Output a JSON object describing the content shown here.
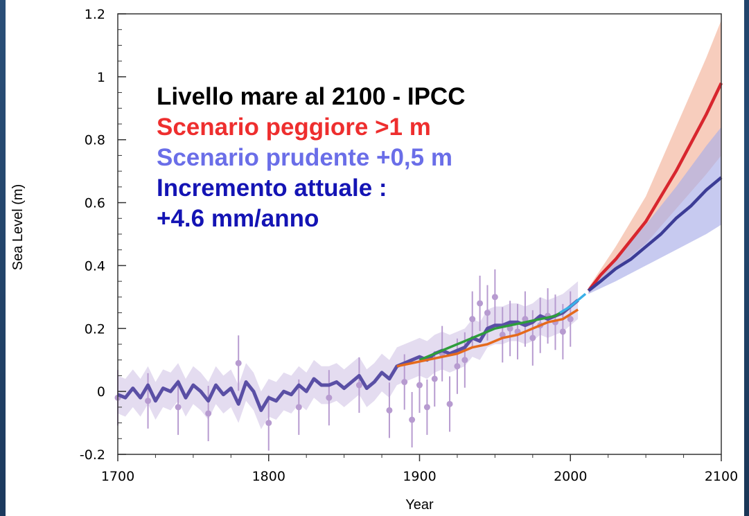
{
  "chart_data": {
    "type": "line",
    "xlabel": "Year",
    "ylabel": "Sea Level (m)",
    "xlim": [
      1700,
      2100
    ],
    "ylim": [
      -0.2,
      1.2
    ],
    "x_ticks": [
      "1700",
      "1800",
      "1900",
      "2000",
      "2100"
    ],
    "y_ticks": [
      "-0.2",
      "0",
      "0.2",
      "0.4",
      "0.6",
      "0.8",
      "1",
      "1.2"
    ],
    "annotations": [
      {
        "text": "Livello mare al 2100 - IPCC",
        "color": "#000000"
      },
      {
        "text": "Scenario peggiore >1 m",
        "color": "#ee2e2e"
      },
      {
        "text": "Scenario prudente +0,5 m",
        "color": "#6a6ee8"
      },
      {
        "text": "Incremento attuale :",
        "color": "#1414b4"
      },
      {
        "text": "+4.6 mm/anno",
        "color": "#1414b4"
      }
    ],
    "series": [
      {
        "color": "#5a4fa5",
        "x": [
          1700,
          1705,
          1710,
          1715,
          1720,
          1725,
          1730,
          1735,
          1740,
          1745,
          1750,
          1755,
          1760,
          1765,
          1770,
          1775,
          1780,
          1785,
          1790,
          1795,
          1800,
          1805,
          1810,
          1815,
          1820,
          1825,
          1830,
          1835,
          1840,
          1845,
          1850,
          1855,
          1860,
          1865,
          1870,
          1875,
          1880,
          1885,
          1890,
          1895,
          1900,
          1905,
          1910,
          1915,
          1920,
          1925,
          1930,
          1935,
          1940,
          1945,
          1950,
          1955,
          1960,
          1965,
          1970,
          1975,
          1980,
          1985,
          1990,
          1995,
          2000,
          2005
        ],
        "y": [
          -0.01,
          -0.02,
          0.01,
          -0.02,
          0.02,
          -0.03,
          0.01,
          0.0,
          0.03,
          -0.02,
          0.02,
          0.0,
          -0.03,
          0.02,
          -0.01,
          0.01,
          -0.04,
          0.03,
          0.0,
          -0.06,
          -0.02,
          -0.03,
          0.0,
          -0.01,
          0.02,
          0.0,
          0.04,
          0.02,
          0.02,
          0.03,
          0.01,
          0.03,
          0.05,
          0.01,
          0.03,
          0.06,
          0.04,
          0.08,
          0.09,
          0.1,
          0.11,
          0.1,
          0.12,
          0.13,
          0.12,
          0.13,
          0.14,
          0.17,
          0.16,
          0.2,
          0.21,
          0.21,
          0.22,
          0.22,
          0.21,
          0.22,
          0.24,
          0.23,
          0.24,
          0.25,
          0.27,
          0.29
        ]
      },
      {
        "color": "#2e9d3c",
        "x": [
          1900,
          1910,
          1920,
          1930,
          1940,
          1950,
          1960,
          1970,
          1980,
          1990,
          2000
        ],
        "y": [
          0.1,
          0.12,
          0.14,
          0.16,
          0.18,
          0.2,
          0.21,
          0.22,
          0.23,
          0.24,
          0.27
        ]
      },
      {
        "color": "#e56a1c",
        "x": [
          1885,
          1895,
          1905,
          1915,
          1925,
          1935,
          1945,
          1955,
          1965,
          1975,
          1985,
          1995,
          2005
        ],
        "y": [
          0.08,
          0.09,
          0.1,
          0.11,
          0.12,
          0.14,
          0.15,
          0.17,
          0.18,
          0.2,
          0.22,
          0.23,
          0.26
        ]
      },
      {
        "color": "#3ab0e8",
        "x": [
          1993,
          2000,
          2005,
          2010
        ],
        "y": [
          0.25,
          0.27,
          0.29,
          0.31
        ]
      },
      {
        "color": "#d8262e",
        "x": [
          2012,
          2020,
          2030,
          2040,
          2050,
          2060,
          2070,
          2080,
          2090,
          2100
        ],
        "y": [
          0.32,
          0.37,
          0.42,
          0.48,
          0.54,
          0.62,
          0.7,
          0.79,
          0.88,
          0.98
        ]
      },
      {
        "color": "#3c3c96",
        "x": [
          2012,
          2020,
          2030,
          2040,
          2050,
          2060,
          2070,
          2080,
          2090,
          2100
        ],
        "y": [
          0.32,
          0.35,
          0.39,
          0.42,
          0.46,
          0.5,
          0.55,
          0.59,
          0.64,
          0.68
        ]
      }
    ],
    "bands": [
      {
        "color": "#f2b29a",
        "x": [
          2012,
          2030,
          2050,
          2070,
          2090,
          2100
        ],
        "lower": [
          0.31,
          0.39,
          0.47,
          0.58,
          0.69,
          0.75
        ],
        "upper": [
          0.33,
          0.46,
          0.62,
          0.84,
          1.06,
          1.18
        ]
      },
      {
        "color": "#a9aee8",
        "x": [
          2012,
          2030,
          2050,
          2070,
          2090,
          2100
        ],
        "lower": [
          0.31,
          0.35,
          0.4,
          0.45,
          0.5,
          0.53
        ],
        "upper": [
          0.33,
          0.42,
          0.53,
          0.65,
          0.78,
          0.84
        ]
      }
    ],
    "reconstruction_points": {
      "color": "#b79bd0",
      "x": [
        1700,
        1720,
        1740,
        1760,
        1780,
        1800,
        1820,
        1840,
        1860,
        1880,
        1890,
        1895,
        1900,
        1905,
        1910,
        1915,
        1920,
        1925,
        1930,
        1935,
        1940,
        1945,
        1950,
        1955,
        1960,
        1965,
        1970,
        1975,
        1980,
        1985,
        1990,
        1995,
        2000
      ],
      "y": [
        -0.02,
        -0.03,
        -0.05,
        -0.07,
        0.09,
        -0.1,
        -0.05,
        -0.02,
        0.02,
        -0.06,
        0.03,
        -0.09,
        0.02,
        -0.05,
        0.04,
        0.12,
        -0.04,
        0.08,
        0.1,
        0.23,
        0.28,
        0.25,
        0.3,
        0.18,
        0.2,
        0.19,
        0.23,
        0.17,
        0.21,
        0.24,
        0.22,
        0.19,
        0.23
      ]
    }
  }
}
